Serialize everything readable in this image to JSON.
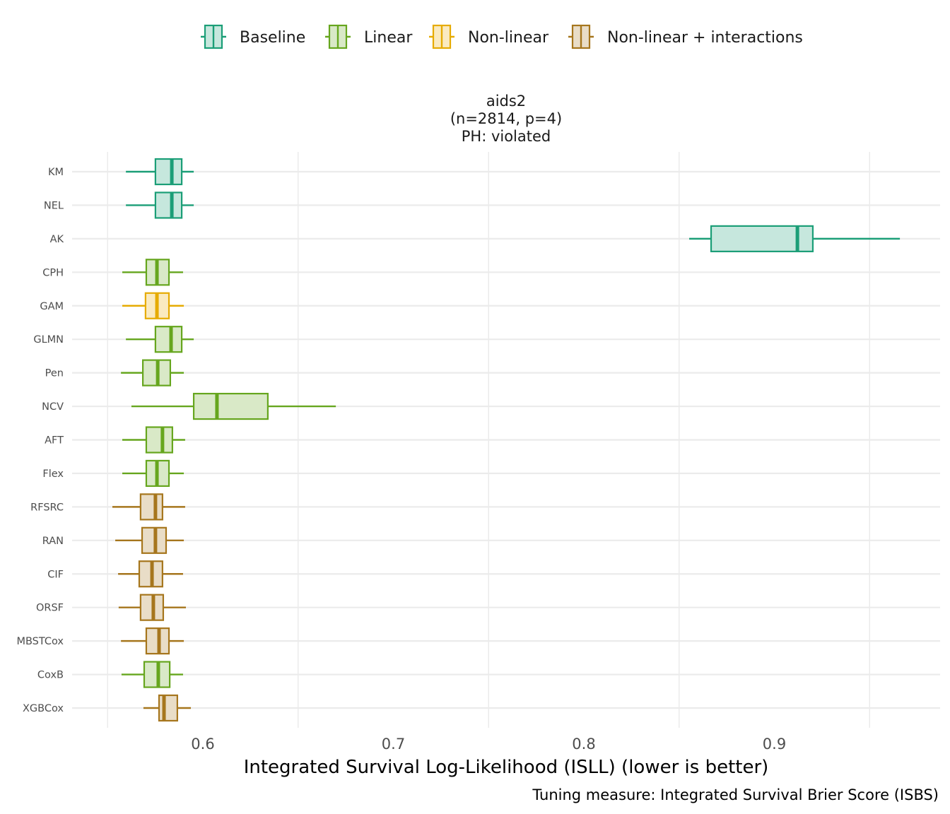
{
  "chart_data": {
    "type": "boxplot",
    "orientation": "horizontal",
    "title_lines": [
      "aids2",
      "(n=2814, p=4)",
      "PH: violated"
    ],
    "xlabel": "Integrated Survival Log-Likelihood (ISLL) (lower is better)",
    "ylabel": "",
    "caption": "Tuning measure: Integrated Survival Brier Score (ISBS)",
    "xlim": [
      0.5413,
      0.9865
    ],
    "x_ticks": [
      0.6,
      0.7,
      0.8,
      0.9
    ],
    "x_tick_labels": [
      "0.6",
      "0.7",
      "0.8",
      "0.9"
    ],
    "x_gridlines": [
      0.55,
      0.65,
      0.75,
      0.85,
      0.95
    ],
    "grid": true,
    "legend_position": "top",
    "legend": [
      {
        "name": "Baseline",
        "stroke": "#1b9e77",
        "fill": "#c6e7dd"
      },
      {
        "name": "Linear",
        "stroke": "#66a61e",
        "fill": "#d9e9c7"
      },
      {
        "name": "Non-linear",
        "stroke": "#e6ab02",
        "fill": "#faeac0"
      },
      {
        "name": "Non-linear + interactions",
        "stroke": "#a6761d",
        "fill": "#e9ddc7"
      }
    ],
    "categories": [
      "KM",
      "NEL",
      "AK",
      "CPH",
      "GAM",
      "GLMN",
      "Pen",
      "NCV",
      "AFT",
      "Flex",
      "RFSRC",
      "RAN",
      "CIF",
      "ORSF",
      "MBSTCox",
      "CoxB",
      "XGBCox"
    ],
    "series": [
      {
        "name": "KM",
        "group": "Baseline",
        "whisker_low": 0.5596,
        "q1": 0.5751,
        "median": 0.5837,
        "q3": 0.5889,
        "whisker_high": 0.5952
      },
      {
        "name": "NEL",
        "group": "Baseline",
        "whisker_low": 0.5596,
        "q1": 0.5751,
        "median": 0.5837,
        "q3": 0.5889,
        "whisker_high": 0.5952
      },
      {
        "name": "AK",
        "group": "Baseline",
        "whisker_low": 0.8553,
        "q1": 0.8668,
        "median": 0.9121,
        "q3": 0.9202,
        "whisker_high": 0.9659
      },
      {
        "name": "CPH",
        "group": "Linear",
        "whisker_low": 0.5577,
        "q1": 0.5703,
        "median": 0.5759,
        "q3": 0.5822,
        "whisker_high": 0.5896
      },
      {
        "name": "GAM",
        "group": "Non-linear",
        "whisker_low": 0.5577,
        "q1": 0.5699,
        "median": 0.5759,
        "q3": 0.5822,
        "whisker_high": 0.59
      },
      {
        "name": "GLMN",
        "group": "Linear",
        "whisker_low": 0.5596,
        "q1": 0.5751,
        "median": 0.5833,
        "q3": 0.5889,
        "whisker_high": 0.5952
      },
      {
        "name": "Pen",
        "group": "Linear",
        "whisker_low": 0.557,
        "q1": 0.5685,
        "median": 0.5763,
        "q3": 0.5829,
        "whisker_high": 0.59
      },
      {
        "name": "NCV",
        "group": "Linear",
        "whisker_low": 0.5625,
        "q1": 0.5952,
        "median": 0.6074,
        "q3": 0.6341,
        "whisker_high": 0.6698
      },
      {
        "name": "AFT",
        "group": "Linear",
        "whisker_low": 0.5577,
        "q1": 0.5703,
        "median": 0.5788,
        "q3": 0.584,
        "whisker_high": 0.5907
      },
      {
        "name": "Flex",
        "group": "Linear",
        "whisker_low": 0.5577,
        "q1": 0.5703,
        "median": 0.5759,
        "q3": 0.5822,
        "whisker_high": 0.59
      },
      {
        "name": "RFSRC",
        "group": "Non-linear + interactions",
        "whisker_low": 0.5525,
        "q1": 0.5673,
        "median": 0.5751,
        "q3": 0.5788,
        "whisker_high": 0.5907
      },
      {
        "name": "RAN",
        "group": "Non-linear + interactions",
        "whisker_low": 0.554,
        "q1": 0.5681,
        "median": 0.5751,
        "q3": 0.5807,
        "whisker_high": 0.59
      },
      {
        "name": "CIF",
        "group": "Non-linear + interactions",
        "whisker_low": 0.5555,
        "q1": 0.5666,
        "median": 0.5733,
        "q3": 0.5788,
        "whisker_high": 0.5896
      },
      {
        "name": "ORSF",
        "group": "Non-linear + interactions",
        "whisker_low": 0.5558,
        "q1": 0.5673,
        "median": 0.574,
        "q3": 0.5792,
        "whisker_high": 0.5911
      },
      {
        "name": "MBSTCox",
        "group": "Non-linear + interactions",
        "whisker_low": 0.557,
        "q1": 0.5703,
        "median": 0.577,
        "q3": 0.5822,
        "whisker_high": 0.59
      },
      {
        "name": "CoxB",
        "group": "Linear",
        "whisker_low": 0.5573,
        "q1": 0.5692,
        "median": 0.5766,
        "q3": 0.5826,
        "whisker_high": 0.5896
      },
      {
        "name": "XGBCox",
        "group": "Non-linear + interactions",
        "whisker_low": 0.5688,
        "q1": 0.577,
        "median": 0.5796,
        "q3": 0.5866,
        "whisker_high": 0.5937
      }
    ]
  }
}
